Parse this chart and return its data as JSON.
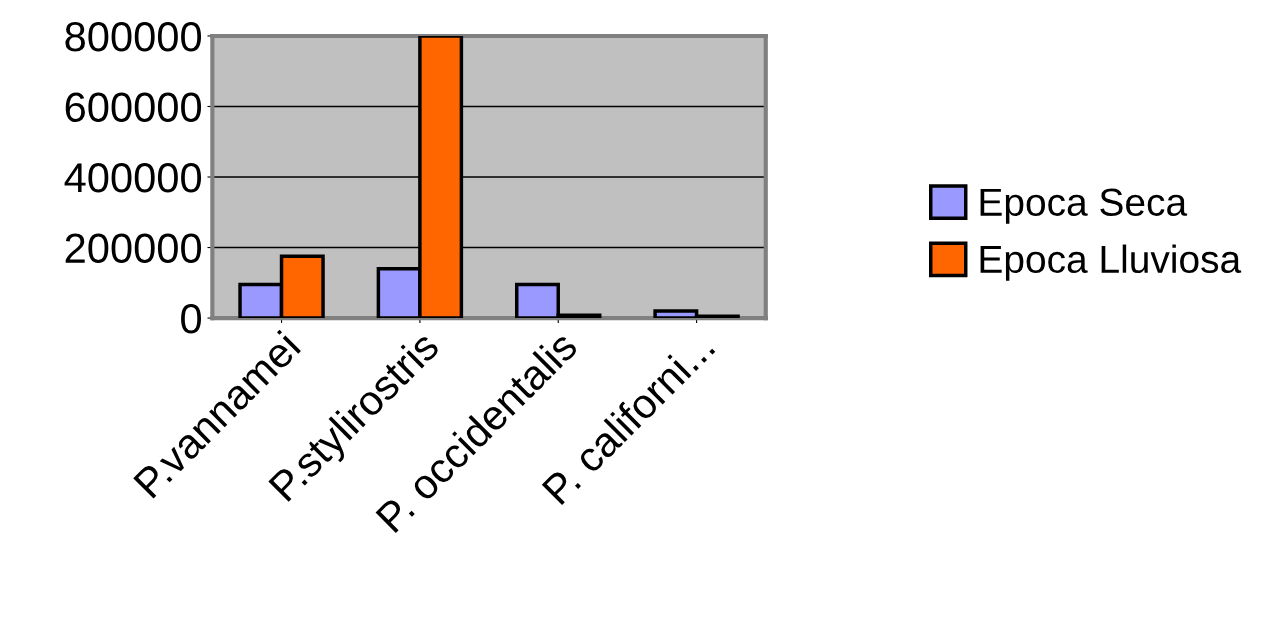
{
  "chart_data": {
    "type": "bar",
    "categories": [
      "P.vannamei",
      "P.stylirostris",
      "P. occidentalis",
      "P. californi..."
    ],
    "series": [
      {
        "name": "Epoca Seca",
        "color": "#9999ff",
        "values": [
          95000,
          140000,
          95000,
          20000
        ]
      },
      {
        "name": "Epoca Lluviosa",
        "color": "#ff6600",
        "values": [
          175000,
          800000,
          8000,
          5000
        ]
      }
    ],
    "ylim": [
      0,
      800000
    ],
    "yticks": [
      0,
      200000,
      400000,
      600000,
      800000
    ],
    "grid": "y",
    "legend": "right"
  }
}
